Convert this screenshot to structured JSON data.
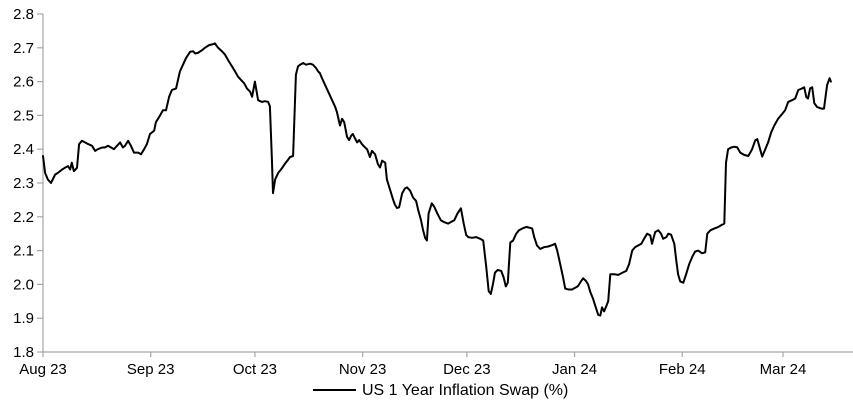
{
  "chart_data": {
    "type": "line",
    "title": "",
    "background": "#ffffff",
    "axis_color": "#a6a6a6",
    "label_color": "#000000",
    "grid": false,
    "y_axis": {
      "min": 1.8,
      "max": 2.8,
      "step": 0.1,
      "tick_labels": [
        "1.8",
        "1.9",
        "2.0",
        "2.1",
        "2.2",
        "2.3",
        "2.4",
        "2.5",
        "2.6",
        "2.7",
        "2.8"
      ]
    },
    "x_axis": {
      "unit": "days since 2023-08-01",
      "range_days": [
        0,
        233
      ],
      "ticks": [
        {
          "label": "Aug 23",
          "day": 0
        },
        {
          "label": "Sep 23",
          "day": 31
        },
        {
          "label": "Oct 23",
          "day": 61
        },
        {
          "label": "Nov 23",
          "day": 92
        },
        {
          "label": "Dec 23",
          "day": 122
        },
        {
          "label": "Jan 24",
          "day": 153
        },
        {
          "label": "Feb 24",
          "day": 184
        },
        {
          "label": "Mar 24",
          "day": 213
        }
      ]
    },
    "legend": {
      "position": "bottom-center",
      "entries": [
        {
          "label": "US 1 Year Inflation Swap (%)",
          "swatch": "line",
          "color": "#000000"
        }
      ]
    },
    "series": [
      {
        "name": "US 1 Year Inflation Swap (%)",
        "color": "#000000",
        "line_width": 2,
        "points": [
          [
            0,
            2.38
          ],
          [
            0.6,
            2.33
          ],
          [
            1.4,
            2.31
          ],
          [
            2.3,
            2.3
          ],
          [
            3.5,
            2.325
          ],
          [
            4.3,
            2.33
          ],
          [
            5.5,
            2.34
          ],
          [
            6.3,
            2.345
          ],
          [
            7.2,
            2.35
          ],
          [
            7.8,
            2.34
          ],
          [
            8.3,
            2.36
          ],
          [
            8.9,
            2.335
          ],
          [
            9.8,
            2.345
          ],
          [
            10.4,
            2.415
          ],
          [
            11.2,
            2.425
          ],
          [
            12.1,
            2.42
          ],
          [
            13,
            2.415
          ],
          [
            14.1,
            2.41
          ],
          [
            15,
            2.395
          ],
          [
            15.8,
            2.4
          ],
          [
            17,
            2.405
          ],
          [
            17.8,
            2.405
          ],
          [
            18.7,
            2.41
          ],
          [
            19.6,
            2.405
          ],
          [
            20.4,
            2.4
          ],
          [
            21.3,
            2.41
          ],
          [
            22.2,
            2.42
          ],
          [
            23,
            2.405
          ],
          [
            23.6,
            2.41
          ],
          [
            24.5,
            2.425
          ],
          [
            25.3,
            2.41
          ],
          [
            26.2,
            2.39
          ],
          [
            27.4,
            2.39
          ],
          [
            28.2,
            2.385
          ],
          [
            29.1,
            2.4
          ],
          [
            29.9,
            2.415
          ],
          [
            30.8,
            2.445
          ],
          [
            32,
            2.455
          ],
          [
            32.5,
            2.48
          ],
          [
            33.7,
            2.5
          ],
          [
            34.5,
            2.515
          ],
          [
            35.4,
            2.515
          ],
          [
            36.3,
            2.555
          ],
          [
            37.1,
            2.575
          ],
          [
            38.3,
            2.58
          ],
          [
            39.4,
            2.63
          ],
          [
            40.3,
            2.65
          ],
          [
            41.2,
            2.67
          ],
          [
            42.3,
            2.688
          ],
          [
            43.2,
            2.69
          ],
          [
            43.8,
            2.683
          ],
          [
            44.6,
            2.685
          ],
          [
            45.8,
            2.693
          ],
          [
            46.6,
            2.7
          ],
          [
            47.8,
            2.708
          ],
          [
            48.7,
            2.71
          ],
          [
            49.5,
            2.713
          ],
          [
            50.4,
            2.7
          ],
          [
            51.5,
            2.69
          ],
          [
            52.4,
            2.68
          ],
          [
            53.3,
            2.663
          ],
          [
            54.4,
            2.645
          ],
          [
            55.3,
            2.63
          ],
          [
            56.1,
            2.615
          ],
          [
            57,
            2.605
          ],
          [
            57.9,
            2.595
          ],
          [
            58.7,
            2.58
          ],
          [
            59.6,
            2.57
          ],
          [
            60.2,
            2.555
          ],
          [
            61,
            2.6
          ],
          [
            61.9,
            2.545
          ],
          [
            63,
            2.54
          ],
          [
            63.9,
            2.542
          ],
          [
            64.8,
            2.54
          ],
          [
            65.3,
            2.527
          ],
          [
            65.9,
            2.37
          ],
          [
            66.2,
            2.27
          ],
          [
            66.8,
            2.31
          ],
          [
            67.7,
            2.33
          ],
          [
            68.5,
            2.34
          ],
          [
            69.7,
            2.358
          ],
          [
            70.5,
            2.368
          ],
          [
            71.1,
            2.377
          ],
          [
            72,
            2.38
          ],
          [
            72.8,
            2.62
          ],
          [
            73.4,
            2.645
          ],
          [
            74,
            2.65
          ],
          [
            74.9,
            2.655
          ],
          [
            75.7,
            2.65
          ],
          [
            76.9,
            2.653
          ],
          [
            77.7,
            2.65
          ],
          [
            78.6,
            2.64
          ],
          [
            79.2,
            2.63
          ],
          [
            79.7,
            2.625
          ],
          [
            80.3,
            2.61
          ],
          [
            81.2,
            2.59
          ],
          [
            82.1,
            2.57
          ],
          [
            83.2,
            2.545
          ],
          [
            84.1,
            2.525
          ],
          [
            84.6,
            2.51
          ],
          [
            85.5,
            2.47
          ],
          [
            86.1,
            2.49
          ],
          [
            86.7,
            2.48
          ],
          [
            87.5,
            2.437
          ],
          [
            88.1,
            2.427
          ],
          [
            88.7,
            2.44
          ],
          [
            89.2,
            2.445
          ],
          [
            89.8,
            2.432
          ],
          [
            90.4,
            2.42
          ],
          [
            91,
            2.427
          ],
          [
            91.8,
            2.415
          ],
          [
            92.7,
            2.405
          ],
          [
            93.3,
            2.4
          ],
          [
            94.1,
            2.377
          ],
          [
            94.7,
            2.395
          ],
          [
            95.6,
            2.385
          ],
          [
            96.4,
            2.356
          ],
          [
            97,
            2.346
          ],
          [
            97.6,
            2.366
          ],
          [
            98.5,
            2.36
          ],
          [
            99,
            2.31
          ],
          [
            99.9,
            2.28
          ],
          [
            100.8,
            2.25
          ],
          [
            101.3,
            2.236
          ],
          [
            101.9,
            2.226
          ],
          [
            102.5,
            2.228
          ],
          [
            103.4,
            2.27
          ],
          [
            104.2,
            2.284
          ],
          [
            104.8,
            2.287
          ],
          [
            105.7,
            2.277
          ],
          [
            106.5,
            2.257
          ],
          [
            107.4,
            2.247
          ],
          [
            108,
            2.22
          ],
          [
            108.8,
            2.19
          ],
          [
            109.4,
            2.16
          ],
          [
            110,
            2.137
          ],
          [
            110.5,
            2.13
          ],
          [
            111,
            2.21
          ],
          [
            111.9,
            2.24
          ],
          [
            112.6,
            2.23
          ],
          [
            113.5,
            2.21
          ],
          [
            114.5,
            2.19
          ],
          [
            115.5,
            2.184
          ],
          [
            116.6,
            2.18
          ],
          [
            117.5,
            2.185
          ],
          [
            118.4,
            2.19
          ],
          [
            119.3,
            2.21
          ],
          [
            120.3,
            2.225
          ],
          [
            121.1,
            2.18
          ],
          [
            121.8,
            2.146
          ],
          [
            122.4,
            2.14
          ],
          [
            123.5,
            2.138
          ],
          [
            124.7,
            2.14
          ],
          [
            125.8,
            2.135
          ],
          [
            126.7,
            2.13
          ],
          [
            127.6,
            2.05
          ],
          [
            128.3,
            1.98
          ],
          [
            128.9,
            1.972
          ],
          [
            129.5,
            2.0
          ],
          [
            130.1,
            2.035
          ],
          [
            130.9,
            2.043
          ],
          [
            131.9,
            2.04
          ],
          [
            132.6,
            2.02
          ],
          [
            133.2,
            1.994
          ],
          [
            133.8,
            2.005
          ],
          [
            134.5,
            2.124
          ],
          [
            135.3,
            2.13
          ],
          [
            136.2,
            2.15
          ],
          [
            137,
            2.16
          ],
          [
            137.9,
            2.165
          ],
          [
            139.1,
            2.17
          ],
          [
            139.9,
            2.168
          ],
          [
            140.8,
            2.165
          ],
          [
            141.4,
            2.14
          ],
          [
            142.2,
            2.115
          ],
          [
            143.1,
            2.105
          ],
          [
            144.2,
            2.11
          ],
          [
            145.4,
            2.112
          ],
          [
            146.5,
            2.116
          ],
          [
            147.4,
            2.12
          ],
          [
            148,
            2.1
          ],
          [
            148.8,
            2.063
          ],
          [
            149.7,
            2.02
          ],
          [
            150.3,
            1.988
          ],
          [
            151.2,
            1.985
          ],
          [
            152.3,
            1.985
          ],
          [
            153.2,
            1.99
          ],
          [
            154,
            1.995
          ],
          [
            154.9,
            2.01
          ],
          [
            155.5,
            2.018
          ],
          [
            156.3,
            2.01
          ],
          [
            156.9,
            2.0
          ],
          [
            157.5,
            1.978
          ],
          [
            158.3,
            1.958
          ],
          [
            158.9,
            1.939
          ],
          [
            159.8,
            1.91
          ],
          [
            160.4,
            1.908
          ],
          [
            160.9,
            1.932
          ],
          [
            161.5,
            1.92
          ],
          [
            162.1,
            1.935
          ],
          [
            162.7,
            1.95
          ],
          [
            163.3,
            2.03
          ],
          [
            164.4,
            2.03
          ],
          [
            165.6,
            2.028
          ],
          [
            166.7,
            2.034
          ],
          [
            167.9,
            2.04
          ],
          [
            168.7,
            2.06
          ],
          [
            169.6,
            2.1
          ],
          [
            170.4,
            2.11
          ],
          [
            171.3,
            2.115
          ],
          [
            172.2,
            2.12
          ],
          [
            173,
            2.135
          ],
          [
            173.9,
            2.15
          ],
          [
            174.8,
            2.145
          ],
          [
            175.3,
            2.12
          ],
          [
            176.2,
            2.155
          ],
          [
            177.1,
            2.16
          ],
          [
            177.9,
            2.15
          ],
          [
            178.5,
            2.135
          ],
          [
            179.4,
            2.14
          ],
          [
            180,
            2.15
          ],
          [
            180.8,
            2.147
          ],
          [
            181.7,
            2.12
          ],
          [
            182.3,
            2.07
          ],
          [
            182.8,
            2.03
          ],
          [
            183.4,
            2.009
          ],
          [
            184.3,
            2.005
          ],
          [
            185.1,
            2.03
          ],
          [
            186,
            2.06
          ],
          [
            186.9,
            2.082
          ],
          [
            187.7,
            2.097
          ],
          [
            188.6,
            2.1
          ],
          [
            189.7,
            2.092
          ],
          [
            190.6,
            2.095
          ],
          [
            191.2,
            2.15
          ],
          [
            192.1,
            2.16
          ],
          [
            193.2,
            2.165
          ],
          [
            194.4,
            2.17
          ],
          [
            195.5,
            2.177
          ],
          [
            196.1,
            2.18
          ],
          [
            196.6,
            2.36
          ],
          [
            197.2,
            2.4
          ],
          [
            198.1,
            2.405
          ],
          [
            198.9,
            2.407
          ],
          [
            199.8,
            2.406
          ],
          [
            200.7,
            2.39
          ],
          [
            201.8,
            2.383
          ],
          [
            203,
            2.38
          ],
          [
            204.1,
            2.4
          ],
          [
            205,
            2.426
          ],
          [
            205.6,
            2.43
          ],
          [
            206.4,
            2.4
          ],
          [
            207,
            2.378
          ],
          [
            207.9,
            2.4
          ],
          [
            208.7,
            2.42
          ],
          [
            209.6,
            2.45
          ],
          [
            210.5,
            2.47
          ],
          [
            211.6,
            2.49
          ],
          [
            212.8,
            2.505
          ],
          [
            213.6,
            2.515
          ],
          [
            214.5,
            2.54
          ],
          [
            215.6,
            2.545
          ],
          [
            216.5,
            2.55
          ],
          [
            217.4,
            2.575
          ],
          [
            218.5,
            2.58
          ],
          [
            219.1,
            2.583
          ],
          [
            219.7,
            2.554
          ],
          [
            220.2,
            2.55
          ],
          [
            220.8,
            2.58
          ],
          [
            221.4,
            2.583
          ],
          [
            222,
            2.536
          ],
          [
            222.8,
            2.525
          ],
          [
            224,
            2.52
          ],
          [
            224.8,
            2.52
          ],
          [
            225.7,
            2.59
          ],
          [
            226.4,
            2.61
          ],
          [
            226.8,
            2.6
          ]
        ]
      }
    ]
  }
}
